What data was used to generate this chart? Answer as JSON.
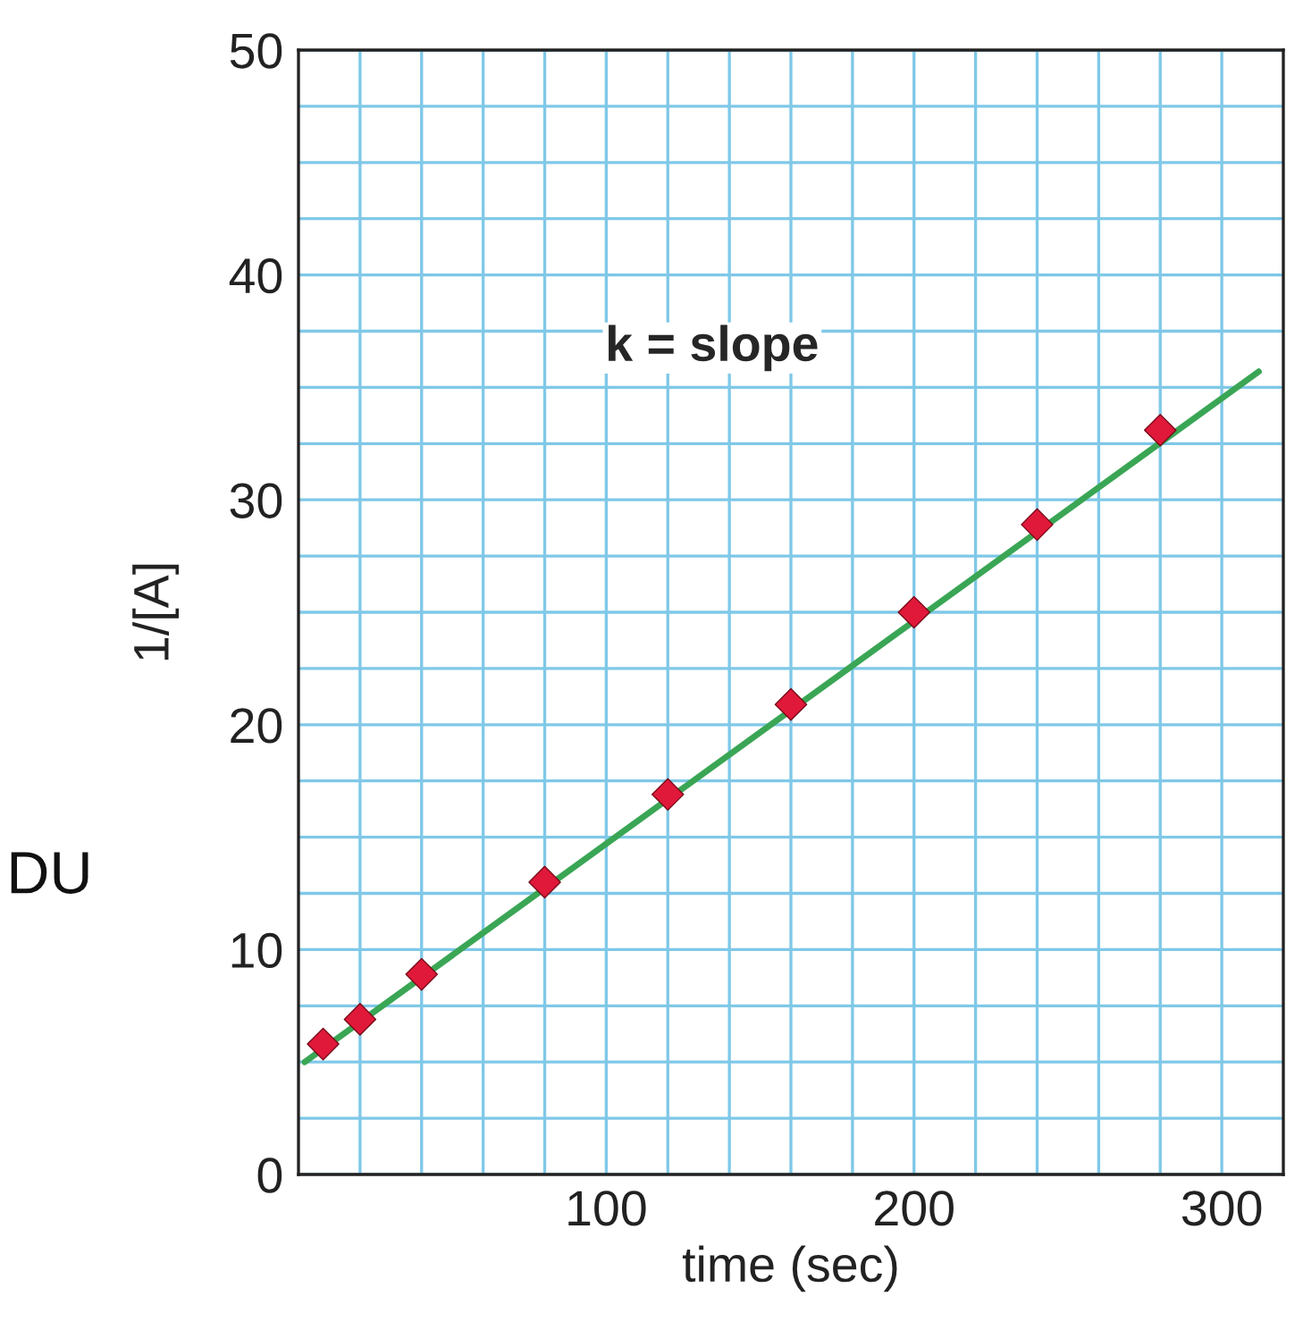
{
  "chart_data": {
    "type": "scatter",
    "xlabel": "time (sec)",
    "ylabel": "1/[A]",
    "xlim": [
      0,
      320
    ],
    "ylim": [
      0,
      50
    ],
    "xticks": [
      {
        "value": 20,
        "label": null
      },
      {
        "value": 40,
        "label": null
      },
      {
        "value": 60,
        "label": null
      },
      {
        "value": 80,
        "label": null
      },
      100,
      {
        "value": 120,
        "label": null
      },
      {
        "value": 140,
        "label": null
      },
      {
        "value": 160,
        "label": null
      },
      {
        "value": 180,
        "label": null
      },
      200,
      {
        "value": 220,
        "label": null
      },
      {
        "value": 240,
        "label": null
      },
      {
        "value": 260,
        "label": null
      },
      {
        "value": 280,
        "label": null
      },
      300
    ],
    "yticks": [
      0,
      {
        "value": 2.5,
        "label": null
      },
      {
        "value": 5,
        "label": null
      },
      {
        "value": 7.5,
        "label": null
      },
      10,
      {
        "value": 12.5,
        "label": null
      },
      {
        "value": 15,
        "label": null
      },
      {
        "value": 17.5,
        "label": null
      },
      20,
      {
        "value": 22.5,
        "label": null
      },
      {
        "value": 25,
        "label": null
      },
      {
        "value": 27.5,
        "label": null
      },
      30,
      {
        "value": 32.5,
        "label": null
      },
      {
        "value": 35,
        "label": null
      },
      {
        "value": 37.5,
        "label": null
      },
      40,
      {
        "value": 42.5,
        "label": null
      },
      {
        "value": 45,
        "label": null
      },
      {
        "value": 47.5,
        "label": null
      },
      50
    ],
    "grid": true,
    "series": [
      {
        "type": "line",
        "color": "#3aa655",
        "marker": "none",
        "line_style": "solid",
        "x": [
          2,
          312
        ],
        "values": [
          5.0,
          35.7
        ]
      },
      {
        "color": "#e0193a",
        "marker": "diamond",
        "x": [
          8,
          20,
          40,
          80,
          120,
          160,
          200,
          240,
          280
        ],
        "values": [
          5.8,
          6.9,
          8.9,
          13.0,
          16.9,
          20.9,
          25.0,
          28.9,
          33.1
        ]
      }
    ],
    "annotations": [
      "k = slope",
      "DU"
    ]
  }
}
